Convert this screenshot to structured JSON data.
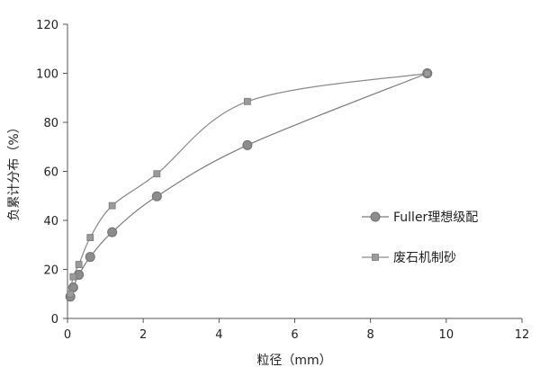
{
  "chart_data": {
    "type": "line",
    "title": "",
    "xlabel": "粒径（mm）",
    "ylabel": "负累计分布（%）",
    "xlim": [
      0,
      12
    ],
    "ylim": [
      0,
      120
    ],
    "xticks": [
      "0",
      "2",
      "4",
      "6",
      "8",
      "10",
      "12"
    ],
    "yticks": [
      "0",
      "20",
      "40",
      "60",
      "80",
      "100",
      "120"
    ],
    "grid": false,
    "legend_position": "right",
    "series": [
      {
        "name": "Fuller理想级配",
        "marker": "circle",
        "color": "#7a7a7a",
        "x": [
          0.075,
          0.15,
          0.3,
          0.6,
          1.18,
          2.36,
          4.75,
          9.5
        ],
        "y": [
          8.9,
          12.6,
          17.8,
          25.1,
          35.2,
          49.8,
          70.7,
          100
        ]
      },
      {
        "name": "废石机制砂",
        "marker": "square",
        "color": "#8a8a8a",
        "x": [
          0.075,
          0.15,
          0.3,
          0.6,
          1.18,
          2.36,
          4.75,
          9.5
        ],
        "y": [
          10,
          17,
          22,
          33,
          46,
          59,
          88.5,
          100
        ]
      }
    ]
  }
}
